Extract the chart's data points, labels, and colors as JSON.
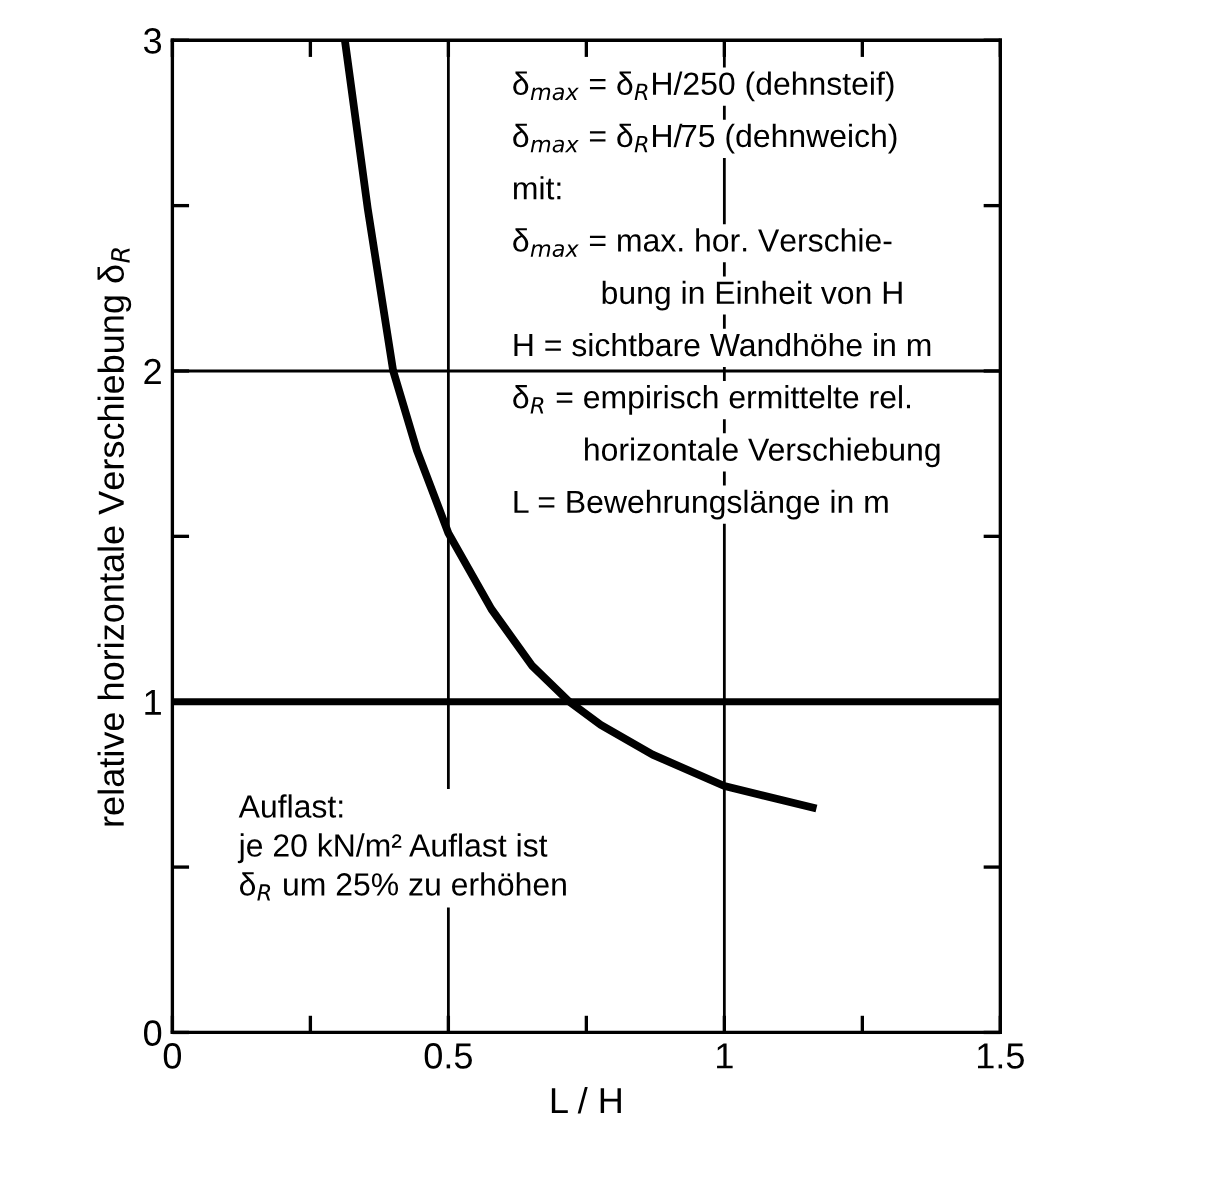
{
  "chart_data": {
    "type": "line",
    "xlabel": "L / H",
    "ylabel": "relative horizontale Verschiebung δ$_{R}$",
    "x": [
      0.3125,
      0.354,
      0.4,
      0.443,
      0.5,
      0.578,
      0.651,
      0.719,
      0.776,
      0.87,
      1.0,
      1.16
    ],
    "series": [
      {
        "color": "#000000",
        "values": [
          3.0,
          2.49,
          2.0,
          1.76,
          1.51,
          1.28,
          1.11,
          1.0,
          0.93,
          0.84,
          0.745,
          0.68
        ]
      }
    ],
    "xlim": [
      0,
      1.5
    ],
    "ylim": [
      0,
      3
    ],
    "xticks": [
      0,
      {
        "value": 0.25,
        "label": null
      },
      0.5,
      {
        "value": 0.75,
        "label": null
      },
      1,
      {
        "value": 1.25,
        "label": null
      },
      1.5
    ],
    "yticks": [
      0,
      {
        "value": 0.5,
        "label": null
      },
      1,
      {
        "value": 1.5,
        "label": null
      },
      2,
      {
        "value": 2.5,
        "label": null
      },
      3
    ],
    "grid": true,
    "legend": false,
    "marker": "none",
    "line_style": "solid",
    "ref_lines": [
      {
        "axis": "y",
        "value": 1,
        "label": null,
        "color": "#000000"
      }
    ],
    "annotations": [
      "δ$_{max}$ = δ$_{R}$H/250 (dehnsteif)",
      "δ$_{max}$ = δ$_{R}$H/75 (dehnweich)",
      "mit:",
      "δ$_{max}$ = max. hor. Verschie-",
      "          bung in Einheit von H",
      "H = sichtbare Wandhöhe in m",
      "δ$_{R}$ = empirisch ermittelte rel.",
      "        horizontale Verschiebung",
      "L = Bewehrungslänge in m",
      "Auflast:\nje 20 kN/m² Auflast ist\nδ$_{R}$ um 25% zu erhöhen"
    ]
  }
}
